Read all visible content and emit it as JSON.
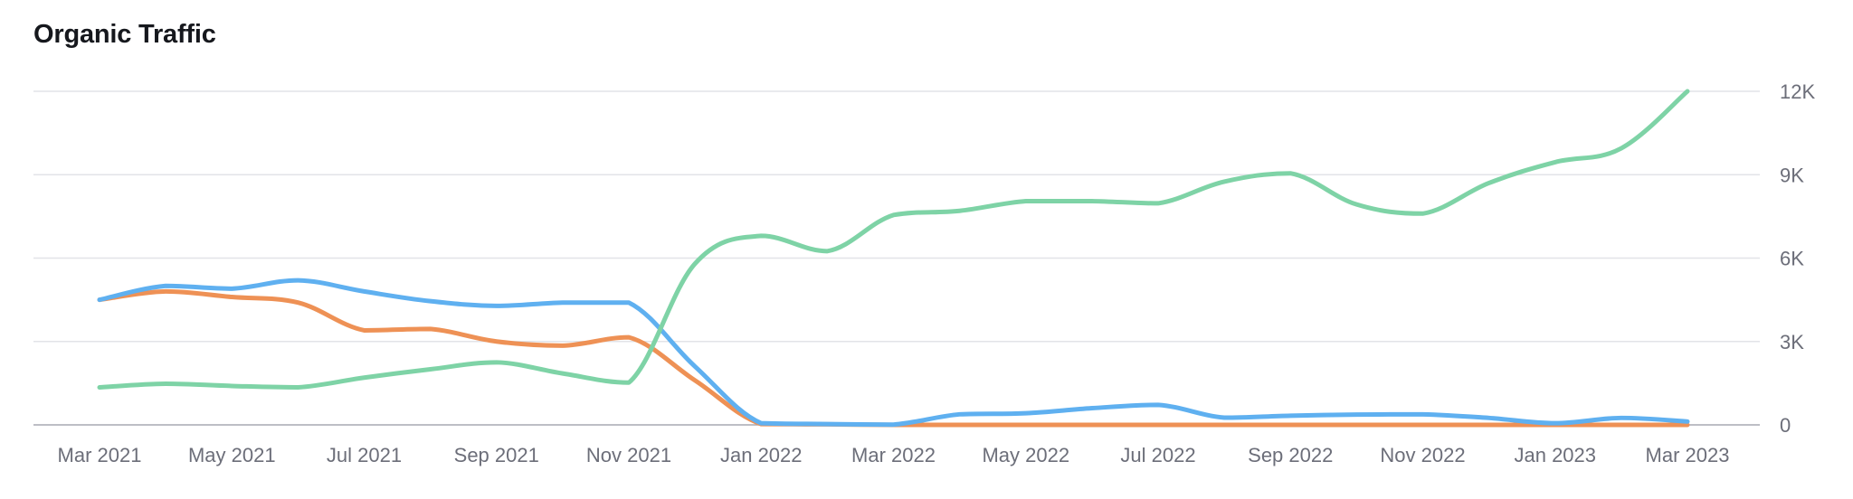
{
  "header": {
    "title": "Organic Traffic"
  },
  "chart_data": {
    "type": "line",
    "title": "Organic Traffic",
    "xlabel": "",
    "ylabel": "",
    "x": [
      "2021-03",
      "2021-04",
      "2021-05",
      "2021-06",
      "2021-07",
      "2021-08",
      "2021-09",
      "2021-10",
      "2021-11",
      "2021-12",
      "2022-01",
      "2022-02",
      "2022-03",
      "2022-04",
      "2022-05",
      "2022-06",
      "2022-07",
      "2022-08",
      "2022-09",
      "2022-10",
      "2022-11",
      "2022-12",
      "2023-01",
      "2023-02",
      "2023-03"
    ],
    "x_tick_labels": [
      "Mar 2021",
      "May 2021",
      "Jul 2021",
      "Sep 2021",
      "Nov 2021",
      "Jan 2022",
      "Mar 2022",
      "May 2022",
      "Jul 2022",
      "Sep 2022",
      "Nov 2022",
      "Jan 2023",
      "Mar 2023"
    ],
    "ylim": [
      0,
      12000
    ],
    "y_ticks": [
      0,
      3000,
      6000,
      9000,
      12000
    ],
    "y_tick_labels": [
      "0",
      "3K",
      "6K",
      "9K",
      "12K"
    ],
    "y_axis_position": "right",
    "grid": true,
    "legend": "none",
    "series": [
      {
        "color": "#7ed3a6",
        "values": [
          1350,
          1480,
          1400,
          1350,
          1700,
          2000,
          2250,
          1850,
          1520,
          5800,
          6800,
          6250,
          7550,
          7700,
          8050,
          8050,
          7970,
          8750,
          9050,
          7930,
          7600,
          8700,
          9450,
          9950,
          12000
        ]
      },
      {
        "color": "#5fb0f0",
        "values": [
          4500,
          5000,
          4900,
          5200,
          4800,
          4450,
          4280,
          4400,
          4400,
          2100,
          60,
          30,
          10,
          380,
          420,
          600,
          720,
          260,
          330,
          370,
          380,
          250,
          60,
          250,
          120
        ]
      },
      {
        "color": "#ee9155",
        "values": [
          4500,
          4800,
          4600,
          4400,
          3400,
          3450,
          3000,
          2850,
          3150,
          1600,
          30,
          20,
          0,
          0,
          0,
          0,
          0,
          0,
          0,
          0,
          0,
          0,
          0,
          0,
          0
        ]
      }
    ]
  },
  "colors": {
    "grid": "#e2e3e8",
    "baseline": "#a7a9b2",
    "tick_text": "#6c6e79",
    "title_text": "#16181d"
  }
}
